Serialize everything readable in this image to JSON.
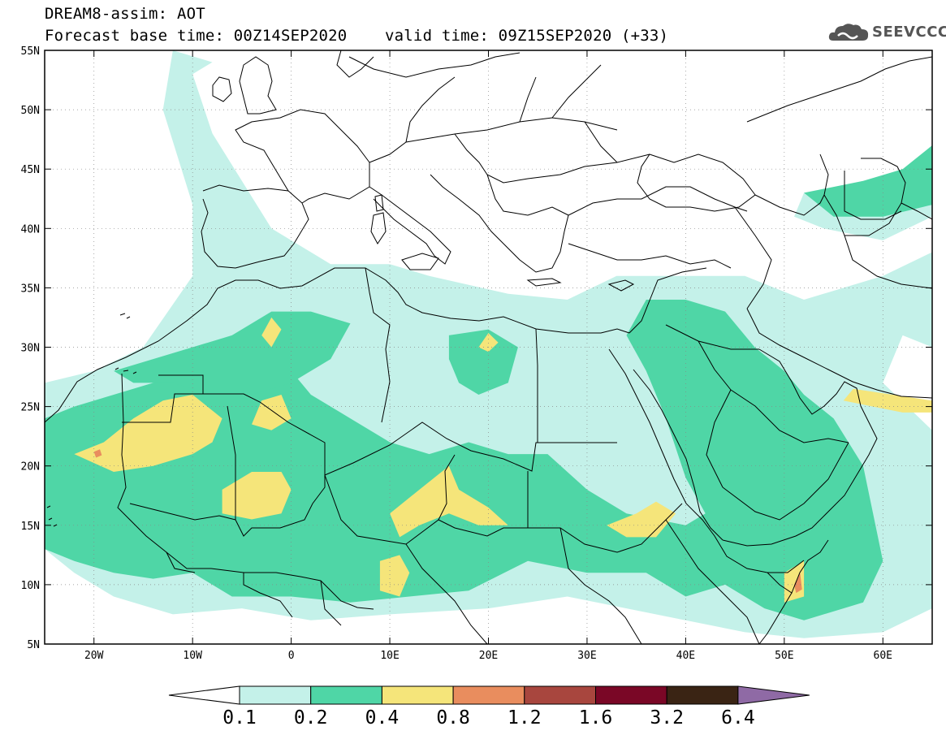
{
  "header": {
    "title_line1": "DREAM8-assim: AOT",
    "forecast_base_label": "Forecast base time: 00Z14SEP2020",
    "valid_time_label": "valid time: 09Z15SEP2020 (+33)",
    "logo_text": "SEEVCCC"
  },
  "map": {
    "lon_range": [
      -25,
      65
    ],
    "lat_range": [
      5,
      55
    ],
    "lat_ticks": [
      {
        "value": 55,
        "label": "55N"
      },
      {
        "value": 50,
        "label": "50N"
      },
      {
        "value": 45,
        "label": "45N"
      },
      {
        "value": 40,
        "label": "40N"
      },
      {
        "value": 35,
        "label": "35N"
      },
      {
        "value": 30,
        "label": "30N"
      },
      {
        "value": 25,
        "label": "25N"
      },
      {
        "value": 20,
        "label": "20N"
      },
      {
        "value": 15,
        "label": "15N"
      },
      {
        "value": 10,
        "label": "10N"
      },
      {
        "value": 5,
        "label": "5N"
      }
    ],
    "lon_ticks": [
      {
        "value": -20,
        "label": "20W"
      },
      {
        "value": -10,
        "label": "10W"
      },
      {
        "value": 0,
        "label": "0"
      },
      {
        "value": 10,
        "label": "10E"
      },
      {
        "value": 20,
        "label": "20E"
      },
      {
        "value": 30,
        "label": "30E"
      },
      {
        "value": 40,
        "label": "40E"
      },
      {
        "value": 50,
        "label": "50E"
      },
      {
        "value": 60,
        "label": "60E"
      }
    ],
    "gridlines": "dotted",
    "variable": "Aerosol optical thickness (AOT)"
  },
  "colorbar": {
    "levels": [
      "0.1",
      "0.2",
      "0.4",
      "0.8",
      "1.2",
      "1.6",
      "3.2",
      "6.4"
    ],
    "colors": [
      "#ffffff",
      "#c4f1e9",
      "#4fd6a6",
      "#f5e57a",
      "#e98d5e",
      "#a8463e",
      "#7a0726",
      "#3a2414",
      "#8f6aa5"
    ]
  },
  "chart_data": {
    "type": "heatmap",
    "title": "DREAM8-assim: AOT",
    "xlabel": "",
    "ylabel": "",
    "xlim": [
      -25,
      65
    ],
    "ylim": [
      5,
      55
    ],
    "classes": [
      "<0.1",
      "0.1-0.2",
      "0.2-0.4",
      "0.4-0.8",
      "0.8-1.2"
    ],
    "regions": [
      {
        "class": 1,
        "poly": [
          [
            -25,
            13
          ],
          [
            -22,
            11
          ],
          [
            -18,
            9
          ],
          [
            -12,
            7.5
          ],
          [
            -5,
            8
          ],
          [
            2,
            7
          ],
          [
            10,
            7.5
          ],
          [
            20,
            8
          ],
          [
            28,
            9
          ],
          [
            34,
            8
          ],
          [
            40,
            7
          ],
          [
            46,
            6
          ],
          [
            52,
            5.5
          ],
          [
            60,
            6
          ],
          [
            65,
            8
          ],
          [
            65,
            23
          ],
          [
            60,
            27
          ],
          [
            62,
            31
          ],
          [
            65,
            30
          ],
          [
            65,
            38
          ],
          [
            60,
            36
          ],
          [
            52,
            34
          ],
          [
            46,
            36
          ],
          [
            40,
            36
          ],
          [
            33,
            36
          ],
          [
            28,
            34
          ],
          [
            22,
            34.5
          ],
          [
            14,
            36
          ],
          [
            10,
            37
          ],
          [
            4,
            37
          ],
          [
            -2,
            40
          ],
          [
            -5,
            44
          ],
          [
            -8,
            48
          ],
          [
            -10,
            53
          ],
          [
            -8,
            54
          ],
          [
            -12,
            55
          ],
          [
            -13,
            50
          ],
          [
            -10,
            42
          ],
          [
            -10,
            36
          ],
          [
            -15,
            30
          ],
          [
            -20,
            28
          ],
          [
            -25,
            27
          ]
        ]
      },
      {
        "class": 1,
        "poly": [
          [
            52,
            43
          ],
          [
            58,
            43
          ],
          [
            62,
            44
          ],
          [
            65,
            46
          ],
          [
            65,
            41
          ],
          [
            60,
            39
          ],
          [
            54,
            40
          ],
          [
            51,
            41
          ]
        ]
      },
      {
        "class": 2,
        "poly": [
          [
            -25,
            13
          ],
          [
            -22,
            12
          ],
          [
            -18,
            11
          ],
          [
            -14,
            10.5
          ],
          [
            -10,
            11
          ],
          [
            -6,
            9
          ],
          [
            0,
            9
          ],
          [
            6,
            8.5
          ],
          [
            12,
            9
          ],
          [
            18,
            9.5
          ],
          [
            24,
            12
          ],
          [
            30,
            11
          ],
          [
            36,
            11
          ],
          [
            40,
            9
          ],
          [
            44,
            10
          ],
          [
            48,
            8
          ],
          [
            52,
            7
          ],
          [
            58,
            8.5
          ],
          [
            60,
            12
          ],
          [
            58,
            20
          ],
          [
            55,
            24
          ],
          [
            52,
            26
          ],
          [
            50,
            28
          ],
          [
            47,
            30
          ],
          [
            44,
            33
          ],
          [
            40,
            34
          ],
          [
            36,
            34
          ],
          [
            34,
            31
          ],
          [
            36,
            28
          ],
          [
            38,
            24
          ],
          [
            40,
            19
          ],
          [
            42,
            16
          ],
          [
            40,
            15
          ],
          [
            34,
            16
          ],
          [
            30,
            18
          ],
          [
            26,
            21
          ],
          [
            22,
            21
          ],
          [
            18,
            22
          ],
          [
            14,
            21
          ],
          [
            10,
            22
          ],
          [
            6,
            24
          ],
          [
            2,
            26
          ],
          [
            -2,
            30
          ],
          [
            -6,
            31
          ],
          [
            -10,
            28
          ],
          [
            -14,
            27
          ],
          [
            -18,
            26
          ],
          [
            -22,
            25
          ],
          [
            -25,
            24
          ]
        ]
      },
      {
        "class": 2,
        "poly": [
          [
            -18,
            28
          ],
          [
            -14,
            29
          ],
          [
            -10,
            30
          ],
          [
            -6,
            31
          ],
          [
            -2,
            33
          ],
          [
            2,
            33
          ],
          [
            6,
            32
          ],
          [
            4,
            29
          ],
          [
            0,
            27
          ],
          [
            -4,
            26
          ],
          [
            -8,
            26
          ],
          [
            -12,
            27
          ],
          [
            -16,
            27
          ]
        ]
      },
      {
        "class": 2,
        "poly": [
          [
            16,
            31
          ],
          [
            20,
            31.5
          ],
          [
            23,
            30
          ],
          [
            22,
            27
          ],
          [
            19,
            26
          ],
          [
            17,
            27
          ],
          [
            16,
            29
          ]
        ]
      },
      {
        "class": 2,
        "poly": [
          [
            52,
            43
          ],
          [
            58,
            44
          ],
          [
            62,
            45
          ],
          [
            65,
            47
          ],
          [
            65,
            42
          ],
          [
            60,
            41
          ],
          [
            55,
            41
          ]
        ]
      },
      {
        "class": 3,
        "poly": [
          [
            -22,
            21
          ],
          [
            -19,
            22
          ],
          [
            -16,
            24
          ],
          [
            -13,
            25.5
          ],
          [
            -10,
            26
          ],
          [
            -7,
            24
          ],
          [
            -8,
            22
          ],
          [
            -10,
            21
          ],
          [
            -14,
            20
          ],
          [
            -18,
            19.5
          ]
        ]
      },
      {
        "class": 3,
        "poly": [
          [
            -7,
            18
          ],
          [
            -4,
            19.5
          ],
          [
            -1,
            19.5
          ],
          [
            0,
            18
          ],
          [
            -1,
            16
          ],
          [
            -4,
            15.5
          ],
          [
            -7,
            16
          ]
        ]
      },
      {
        "class": 3,
        "poly": [
          [
            -3,
            25.5
          ],
          [
            -1,
            26
          ],
          [
            0,
            24
          ],
          [
            -2,
            23
          ],
          [
            -4,
            23.5
          ]
        ]
      },
      {
        "class": 3,
        "poly": [
          [
            10,
            16
          ],
          [
            13,
            18
          ],
          [
            16,
            20
          ],
          [
            17,
            18
          ],
          [
            20,
            16.5
          ],
          [
            22,
            15
          ],
          [
            19,
            15
          ],
          [
            16,
            16
          ],
          [
            13,
            15
          ],
          [
            11,
            14
          ]
        ]
      },
      {
        "class": 3,
        "poly": [
          [
            9,
            12
          ],
          [
            11,
            12.5
          ],
          [
            12,
            11
          ],
          [
            11,
            9
          ],
          [
            9,
            9.5
          ]
        ]
      },
      {
        "class": 3,
        "poly": [
          [
            32,
            15
          ],
          [
            35,
            16
          ],
          [
            37,
            17
          ],
          [
            39,
            16
          ],
          [
            37,
            14
          ],
          [
            34,
            14
          ]
        ]
      },
      {
        "class": 3,
        "poly": [
          [
            50,
            11
          ],
          [
            52,
            12
          ],
          [
            52,
            9
          ],
          [
            50,
            8.5
          ]
        ]
      },
      {
        "class": 3,
        "poly": [
          [
            56,
            25.5
          ],
          [
            59,
            25
          ],
          [
            62,
            24.5
          ],
          [
            65,
            24.5
          ],
          [
            65,
            25.5
          ],
          [
            61,
            26
          ],
          [
            57,
            26.5
          ]
        ]
      },
      {
        "class": 3,
        "poly": [
          [
            -3,
            31
          ],
          [
            -2,
            32.5
          ],
          [
            -1,
            31.5
          ],
          [
            -2,
            30
          ]
        ]
      },
      {
        "class": 3,
        "poly": [
          [
            19,
            30
          ],
          [
            20,
            31.2
          ],
          [
            21,
            30.4
          ],
          [
            20,
            29.6
          ]
        ]
      },
      {
        "class": 4,
        "poly": [
          [
            -20,
            21.2
          ],
          [
            -19.4,
            21.4
          ],
          [
            -19.2,
            20.9
          ],
          [
            -19.8,
            20.7
          ]
        ]
      },
      {
        "class": 4,
        "poly": [
          [
            51,
            10
          ],
          [
            51.6,
            11
          ],
          [
            51.8,
            9.6
          ],
          [
            51.2,
            9.3
          ]
        ]
      }
    ]
  }
}
